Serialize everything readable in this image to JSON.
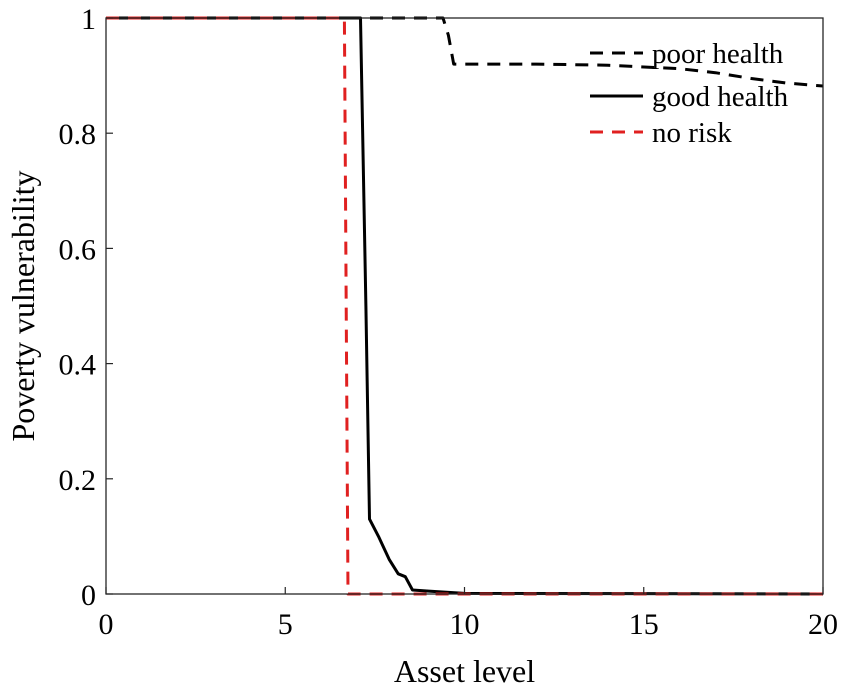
{
  "chart_data": {
    "type": "line",
    "xlabel": "Asset level",
    "ylabel": "Poverty vulnerability",
    "xlim": [
      0,
      20
    ],
    "ylim": [
      0,
      1
    ],
    "xticks": [
      0,
      5,
      10,
      15,
      20
    ],
    "yticks": [
      0,
      0.2,
      0.4,
      0.6,
      0.8,
      1
    ],
    "xtick_labels": [
      "0",
      "5",
      "10",
      "15",
      "20"
    ],
    "ytick_labels": [
      "0",
      "0.2",
      "0.4",
      "0.6",
      "0.8",
      "1"
    ],
    "grid": false,
    "legend_position": "top-right",
    "series": [
      {
        "name": "poor health",
        "color": "#000000",
        "style": "dashed",
        "points": [
          [
            0,
            1
          ],
          [
            9.4,
            1
          ],
          [
            9.55,
            0.97
          ],
          [
            9.7,
            0.92
          ],
          [
            12,
            0.92
          ],
          [
            14,
            0.918
          ],
          [
            16,
            0.912
          ],
          [
            17,
            0.905
          ],
          [
            18,
            0.895
          ],
          [
            19,
            0.887
          ],
          [
            20,
            0.882
          ]
        ]
      },
      {
        "name": "good health",
        "color": "#000000",
        "style": "solid",
        "points": [
          [
            0,
            1
          ],
          [
            7.1,
            1
          ],
          [
            7.25,
            0.5
          ],
          [
            7.35,
            0.13
          ],
          [
            7.6,
            0.1
          ],
          [
            7.9,
            0.06
          ],
          [
            8.15,
            0.035
          ],
          [
            8.35,
            0.03
          ],
          [
            8.55,
            0.007
          ],
          [
            9,
            0.005
          ],
          [
            10,
            0.001
          ],
          [
            20,
            0
          ]
        ]
      },
      {
        "name": "no risk",
        "color": "#e02020",
        "style": "dashed",
        "points": [
          [
            0,
            1
          ],
          [
            6.65,
            1
          ],
          [
            6.75,
            0
          ],
          [
            20,
            0
          ]
        ]
      }
    ]
  }
}
